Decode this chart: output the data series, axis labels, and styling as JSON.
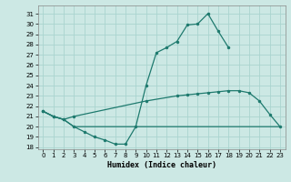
{
  "xlabel": "Humidex (Indice chaleur)",
  "background_color": "#cce8e4",
  "grid_color": "#aad4cf",
  "line_color": "#1e7a6e",
  "xlim": [
    -0.5,
    23.5
  ],
  "ylim": [
    17.8,
    31.8
  ],
  "yticks": [
    18,
    19,
    20,
    21,
    22,
    23,
    24,
    25,
    26,
    27,
    28,
    29,
    30,
    31
  ],
  "xticks": [
    0,
    1,
    2,
    3,
    4,
    5,
    6,
    7,
    8,
    9,
    10,
    11,
    12,
    13,
    14,
    15,
    16,
    17,
    18,
    19,
    20,
    21,
    22,
    23
  ],
  "upper_x": [
    0,
    1,
    2,
    3,
    4,
    5,
    6,
    7,
    8,
    9,
    10,
    11,
    12,
    13,
    14,
    15,
    16,
    17,
    18
  ],
  "upper_y": [
    21.5,
    21.0,
    20.7,
    20.0,
    19.5,
    19.0,
    18.7,
    18.3,
    18.3,
    20.0,
    24.0,
    27.2,
    27.7,
    28.3,
    29.9,
    30.0,
    31.0,
    29.3,
    27.7
  ],
  "middle_x": [
    0,
    1,
    2,
    3,
    10,
    13,
    14,
    15,
    16,
    17,
    18,
    19,
    20,
    21,
    22,
    23
  ],
  "middle_y": [
    21.5,
    21.0,
    20.7,
    21.0,
    22.5,
    23.0,
    23.1,
    23.2,
    23.3,
    23.4,
    23.5,
    23.5,
    23.3,
    22.5,
    21.2,
    20.0
  ],
  "bottom_x": [
    0,
    1,
    2,
    3,
    4,
    5,
    6,
    7,
    8,
    9,
    10,
    11,
    12,
    13,
    14,
    15,
    16,
    17,
    18,
    19,
    20,
    21,
    22,
    23
  ],
  "bottom_y": [
    21.5,
    21.0,
    20.7,
    20.0,
    20.0,
    20.0,
    20.0,
    20.0,
    20.0,
    20.0,
    20.0,
    20.0,
    20.0,
    20.0,
    20.0,
    20.0,
    20.0,
    20.0,
    20.0,
    20.0,
    20.0,
    20.0,
    20.0,
    20.0
  ]
}
